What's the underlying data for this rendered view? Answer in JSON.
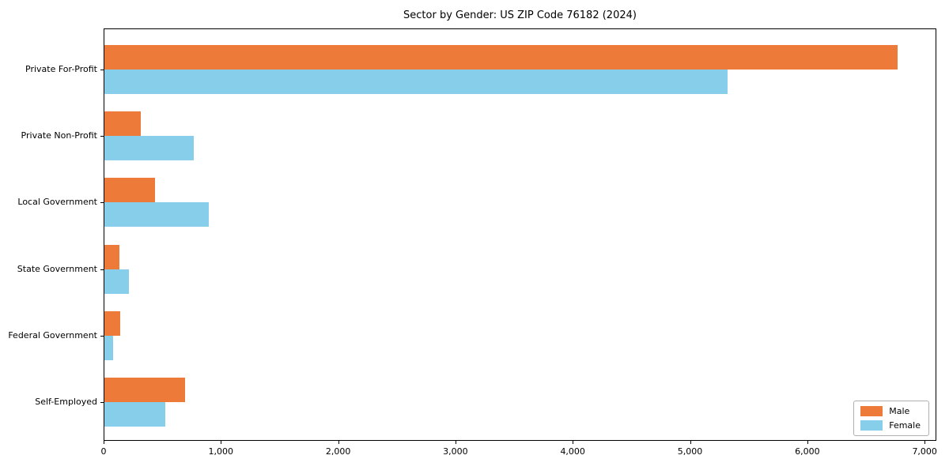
{
  "title": "Sector by Gender: US ZIP Code 76182 (2024)",
  "colors": {
    "male": "#ed7a39",
    "female": "#87ceeb",
    "axis": "#000000",
    "legend_border": "#b0b0b0",
    "background": "#ffffff"
  },
  "legend": {
    "position": "lower right",
    "items": [
      {
        "label": "Male",
        "color": "#ed7a39"
      },
      {
        "label": "Female",
        "color": "#87ceeb"
      }
    ]
  },
  "chart_data": {
    "type": "bar",
    "orientation": "horizontal",
    "title": "Sector by Gender: US ZIP Code 76182 (2024)",
    "categories": [
      "Private For-Profit",
      "Private Non-Profit",
      "Local Government",
      "State Government",
      "Federal Government",
      "Self-Employed"
    ],
    "series": [
      {
        "name": "Male",
        "color": "#ed7a39",
        "values": [
          6760,
          310,
          430,
          130,
          135,
          690
        ]
      },
      {
        "name": "Female",
        "color": "#87ceeb",
        "values": [
          5310,
          760,
          890,
          210,
          75,
          520
        ]
      }
    ],
    "xlabel": "",
    "ylabel": "",
    "xlim": [
      0,
      7100
    ],
    "xticks": [
      0,
      1000,
      2000,
      3000,
      4000,
      5000,
      6000,
      7000
    ],
    "xtick_labels": [
      "0",
      "1,000",
      "2,000",
      "3,000",
      "4,000",
      "5,000",
      "6,000",
      "7,000"
    ],
    "grid": false,
    "legend_position": "lower right"
  }
}
